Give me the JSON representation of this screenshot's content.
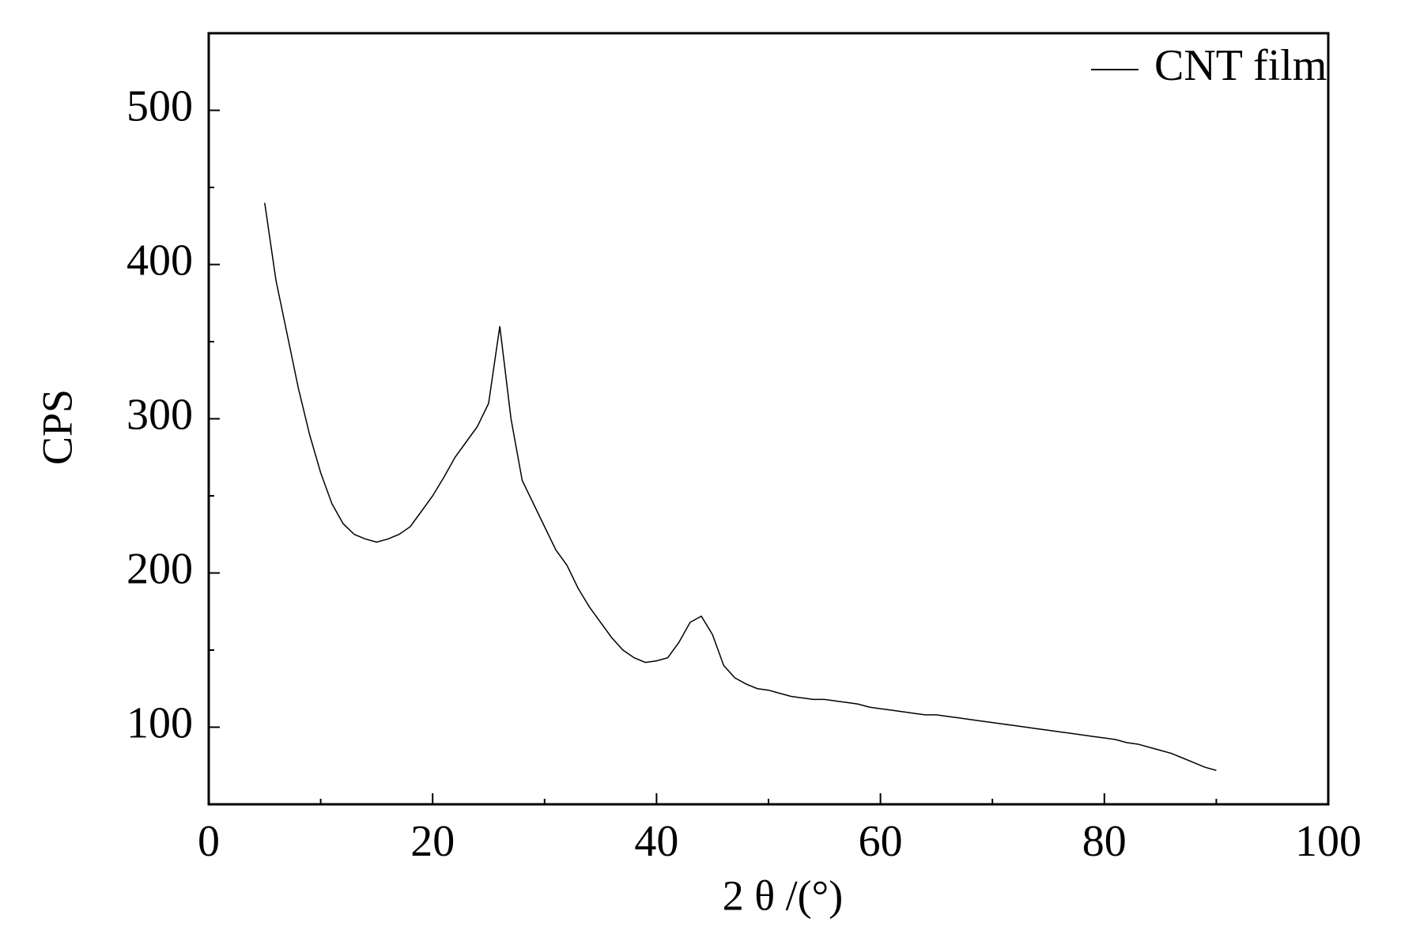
{
  "chart_data": {
    "type": "line",
    "x_label": "2 θ /(°)",
    "y_label": "CPS",
    "legend": "upper right",
    "xlim": [
      0,
      100
    ],
    "xticks": [
      0,
      20,
      40,
      60,
      80,
      100
    ],
    "xminorticks": [
      10,
      30,
      50,
      70,
      90
    ],
    "ylim": [
      50,
      550
    ],
    "yticks": [
      100,
      200,
      300,
      400,
      500
    ],
    "yminorticks": [
      150,
      250,
      350,
      450
    ],
    "x": [
      5,
      6,
      7,
      8,
      9,
      10,
      11,
      12,
      13,
      14,
      15,
      16,
      17,
      18,
      19,
      20,
      21,
      22,
      23,
      24,
      25,
      26,
      27,
      28,
      29,
      30,
      31,
      32,
      33,
      34,
      35,
      36,
      37,
      38,
      39,
      40,
      41,
      42,
      43,
      44,
      45,
      46,
      47,
      48,
      49,
      50,
      51,
      52,
      53,
      54,
      55,
      56,
      57,
      58,
      59,
      60,
      61,
      62,
      63,
      64,
      65,
      66,
      67,
      68,
      69,
      70,
      71,
      72,
      73,
      74,
      75,
      76,
      77,
      78,
      79,
      80,
      81,
      82,
      83,
      84,
      85,
      86,
      87,
      88,
      89,
      90
    ],
    "series": [
      {
        "name": "CNT film",
        "color": "#000000",
        "values": [
          440,
          390,
          355,
          320,
          290,
          265,
          245,
          232,
          225,
          222,
          220,
          222,
          225,
          230,
          240,
          250,
          262,
          275,
          285,
          295,
          310,
          360,
          300,
          260,
          245,
          230,
          215,
          205,
          190,
          178,
          168,
          158,
          150,
          145,
          142,
          143,
          145,
          155,
          168,
          172,
          160,
          140,
          132,
          128,
          125,
          124,
          122,
          120,
          119,
          118,
          118,
          117,
          116,
          115,
          113,
          112,
          111,
          110,
          109,
          108,
          108,
          107,
          106,
          105,
          104,
          103,
          102,
          101,
          100,
          99,
          98,
          97,
          96,
          95,
          94,
          93,
          92,
          90,
          89,
          87,
          85,
          83,
          80,
          77,
          74,
          72
        ]
      }
    ]
  }
}
